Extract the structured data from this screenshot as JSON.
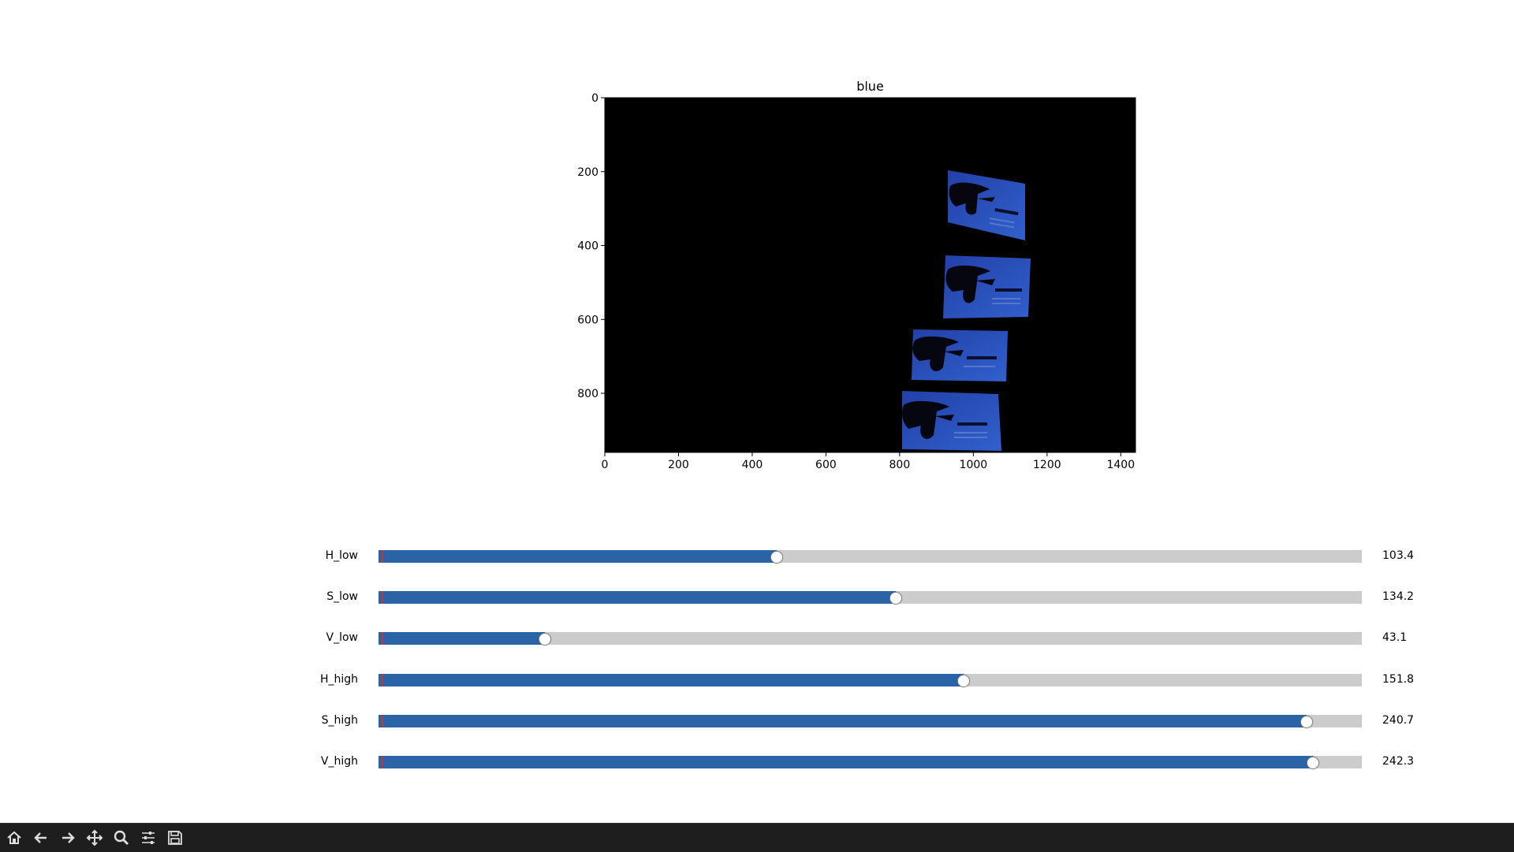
{
  "plot": {
    "title": "blue",
    "x_ticks": [
      "0",
      "200",
      "400",
      "600",
      "800",
      "1000",
      "1200",
      "1400"
    ],
    "y_ticks": [
      "0",
      "200",
      "400",
      "600",
      "800"
    ],
    "image_width": 1440,
    "image_height": 960
  },
  "sliders": [
    {
      "label": "H_low",
      "value": "103.4",
      "fraction": 0.405
    },
    {
      "label": "S_low",
      "value": "134.2",
      "fraction": 0.526
    },
    {
      "label": "V_low",
      "value": "43.1",
      "fraction": 0.169
    },
    {
      "label": "H_high",
      "value": "151.8",
      "fraction": 0.595
    },
    {
      "label": "S_high",
      "value": "240.7",
      "fraction": 0.944
    },
    {
      "label": "V_high",
      "value": "242.3",
      "fraction": 0.95
    }
  ],
  "toolbar": {
    "buttons": [
      {
        "name": "home-button",
        "icon": "home-icon"
      },
      {
        "name": "back-button",
        "icon": "arrow-left-icon"
      },
      {
        "name": "forward-button",
        "icon": "arrow-right-icon"
      },
      {
        "name": "pan-button",
        "icon": "move-icon"
      },
      {
        "name": "zoom-button",
        "icon": "magnifier-icon"
      },
      {
        "name": "configure-subplots-button",
        "icon": "sliders-icon"
      },
      {
        "name": "save-button",
        "icon": "save-icon"
      }
    ]
  },
  "colors": {
    "slider_fill": "#2b64a6",
    "slider_track": "#cccccc",
    "card_blue": "#2a4fb8",
    "toolbar_bg": "#1e1e1e"
  }
}
